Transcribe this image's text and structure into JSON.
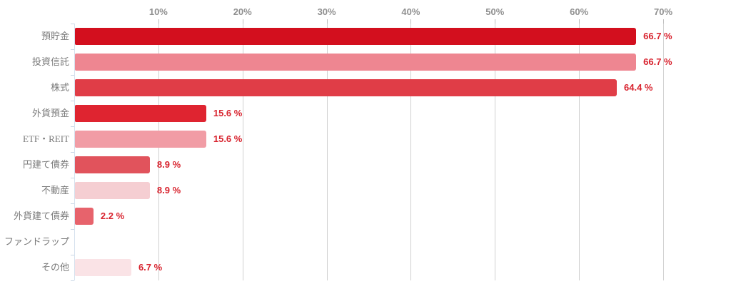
{
  "chart_data": {
    "type": "bar",
    "orientation": "horizontal",
    "title": "",
    "xlabel": "",
    "ylabel": "",
    "categories": [
      "預貯金",
      "投資信託",
      "株式",
      "外貨預金",
      "ETF・REIT",
      "円建て債券",
      "不動産",
      "外貨建て債券",
      "ファンドラップ",
      "その他"
    ],
    "values": [
      66.7,
      66.7,
      64.4,
      15.6,
      15.6,
      8.9,
      8.9,
      2.2,
      0,
      6.7
    ],
    "value_labels": [
      "66.7 %",
      "66.7 %",
      "64.4 %",
      "15.6 %",
      "15.6 %",
      "8.9 %",
      "8.9 %",
      "2.2 %",
      "",
      "6.7 %"
    ],
    "bar_colors": [
      "#d30f1e",
      "#ee8691",
      "#e03d47",
      "#df2430",
      "#f19ca5",
      "#e1535c",
      "#f5ced2",
      "#e7636c",
      "#ffffff",
      "#fae3e6"
    ],
    "x_tick_labels": [
      "10%",
      "20%",
      "30%",
      "40%",
      "50%",
      "60%",
      "70%"
    ],
    "x_tick_values": [
      10,
      20,
      30,
      40,
      50,
      60,
      70
    ],
    "xlim": [
      0,
      70
    ],
    "axis_position": "top",
    "grid": true,
    "legend": "none",
    "colors": {
      "gridline": "#d0d0d0",
      "y_axis_line": "#d5e1ee",
      "x_tick_label": "#8f8f8f",
      "category_label": "#7a7a7a",
      "value_label": "#d8232e"
    }
  }
}
